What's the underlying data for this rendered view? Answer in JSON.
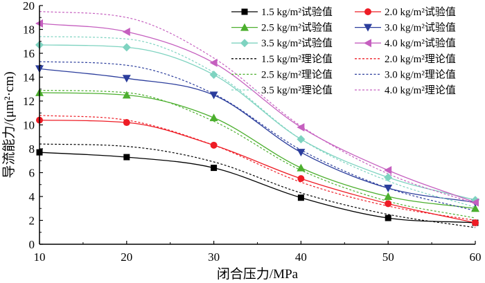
{
  "chart_data": {
    "type": "line",
    "title": "",
    "xlabel": "闭合压力/MPa",
    "ylabel": "导流能力/(μm²·cm)",
    "xlim": [
      10,
      60
    ],
    "ylim": [
      0,
      20
    ],
    "xticks": [
      10,
      20,
      30,
      40,
      50,
      60
    ],
    "yticks": [
      0,
      2,
      4,
      6,
      8,
      10,
      12,
      14,
      16,
      18,
      20
    ],
    "x": [
      10,
      20,
      30,
      40,
      50,
      60
    ],
    "series": [
      {
        "name": "1.5 kg/m²试验值",
        "kind": "experimental",
        "color": "#000000",
        "marker": "square",
        "values": [
          7.7,
          7.3,
          6.4,
          3.9,
          2.2,
          1.8
        ]
      },
      {
        "name": "2.0 kg/m²试验值",
        "kind": "experimental",
        "color": "#ee1c25",
        "marker": "circle",
        "values": [
          10.4,
          10.2,
          8.3,
          5.5,
          3.4,
          1.8
        ]
      },
      {
        "name": "2.5 kg/m²试验值",
        "kind": "experimental",
        "color": "#4caf2e",
        "marker": "triangle-up",
        "values": [
          12.7,
          12.5,
          10.6,
          6.4,
          4.0,
          3.0
        ]
      },
      {
        "name": "3.0 kg/m²试验值",
        "kind": "experimental",
        "color": "#2b3d9c",
        "marker": "triangle-down",
        "values": [
          14.7,
          13.9,
          12.5,
          7.7,
          4.7,
          3.5
        ]
      },
      {
        "name": "3.5 kg/m²试验值",
        "kind": "experimental",
        "color": "#7ed3c0",
        "marker": "diamond",
        "values": [
          16.7,
          16.5,
          14.2,
          8.8,
          5.6,
          3.7
        ]
      },
      {
        "name": "4.0 kg/m²试验值",
        "kind": "experimental",
        "color": "#c55fbf",
        "marker": "triangle-left",
        "values": [
          18.5,
          17.8,
          15.2,
          9.8,
          6.2,
          3.5
        ]
      },
      {
        "name": "1.5 kg/m²理论值",
        "kind": "theoretical",
        "color": "#000000",
        "values": [
          8.4,
          8.2,
          6.9,
          4.3,
          2.5,
          1.4
        ]
      },
      {
        "name": "2.0 kg/m²理论值",
        "kind": "theoretical",
        "color": "#ee1c25",
        "values": [
          10.8,
          10.4,
          8.3,
          5.2,
          3.2,
          2.0
        ]
      },
      {
        "name": "2.5 kg/m²理论值",
        "kind": "theoretical",
        "color": "#4caf2e",
        "values": [
          12.9,
          12.7,
          10.3,
          6.2,
          3.6,
          2.2
        ]
      },
      {
        "name": "3.0 kg/m²理论值",
        "kind": "theoretical",
        "color": "#2b3d9c",
        "values": [
          15.3,
          15.0,
          12.6,
          7.9,
          4.7,
          2.8
        ]
      },
      {
        "name": "3.5 kg/m²理论值",
        "kind": "theoretical",
        "color": "#7ed3c0",
        "values": [
          17.4,
          17.2,
          14.4,
          8.8,
          5.3,
          3.1
        ]
      },
      {
        "name": "4.0 kg/m²理论值",
        "kind": "theoretical",
        "color": "#c55fbf",
        "values": [
          19.5,
          19.0,
          15.6,
          9.9,
          5.9,
          3.4
        ]
      }
    ],
    "legend": {
      "placement": "top-right",
      "columns": 2
    }
  }
}
